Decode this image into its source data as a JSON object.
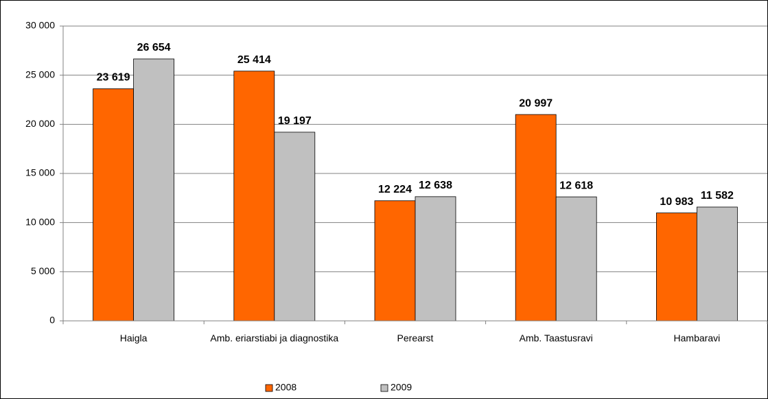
{
  "chart_data": {
    "type": "bar",
    "categories": [
      "Haigla",
      "Amb. eriarstiabi ja diagnostika",
      "Perearst",
      "Amb. Taastusravi",
      "Hambaravi"
    ],
    "series": [
      {
        "name": "2008",
        "color": "#ff6600",
        "values": [
          23619,
          25414,
          12224,
          20997,
          10983
        ],
        "value_labels": [
          "23 619",
          "25 414",
          "12 224",
          "20 997",
          "10 983"
        ]
      },
      {
        "name": "2009",
        "color": "#c0c0c0",
        "values": [
          26654,
          19197,
          12638,
          12618,
          11582
        ],
        "value_labels": [
          "26 654",
          "19 197",
          "12 638",
          "12 618",
          "11 582"
        ]
      }
    ],
    "ylim": [
      0,
      30000
    ],
    "yticks": [
      0,
      {
        "value": 5000,
        "label": "5 000"
      },
      {
        "value": 10000,
        "label": "10 000"
      },
      {
        "value": 15000,
        "label": "15 000"
      },
      {
        "value": 20000,
        "label": "20 000"
      },
      {
        "value": 25000,
        "label": "25 000"
      },
      {
        "value": 30000,
        "label": "30 000"
      }
    ],
    "grid": true,
    "legend": "bottom"
  }
}
